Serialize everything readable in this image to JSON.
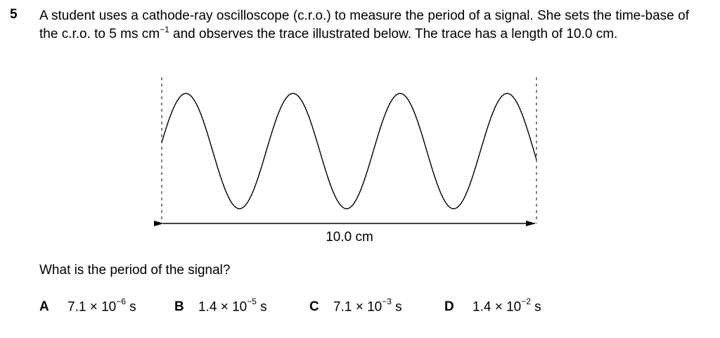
{
  "question": {
    "number": "5",
    "stem_part1": "A student uses a cathode-ray oscilloscope (c.r.o.) to measure the period of a signal. She sets the time-base of the c.r.o. to 5 ms cm",
    "stem_exp": "−1",
    "stem_part2": " and observes the trace illustrated below. The trace has a length of 10.0 cm.",
    "prompt": "What is the period of the signal?"
  },
  "figure": {
    "length_label": "10.0 cm"
  },
  "options": [
    {
      "letter": "A",
      "mantissa": "7.1 × 10",
      "exponent": "−6",
      "unit": "s"
    },
    {
      "letter": "B",
      "mantissa": "1.4 × 10",
      "exponent": "−5",
      "unit": "s"
    },
    {
      "letter": "C",
      "mantissa": "7.1 × 10",
      "exponent": "−3",
      "unit": "s"
    },
    {
      "letter": "D",
      "mantissa": "1.4 × 10",
      "exponent": "−2",
      "unit": "s"
    }
  ]
}
